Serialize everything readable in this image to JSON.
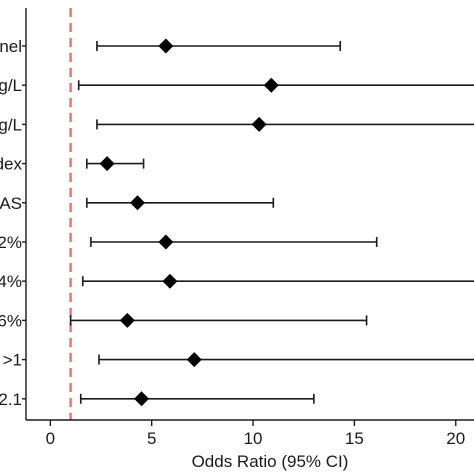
{
  "chart_data": {
    "type": "forest",
    "xlabel": "Odds Ratio (95% CI)",
    "xlim": [
      -1.2,
      20.9
    ],
    "xticks": [
      0,
      5,
      10,
      15,
      20
    ],
    "tick_labels": [
      "0",
      "5",
      "10",
      "15",
      "20"
    ],
    "reference_line": {
      "x": 1,
      "style": "dashed",
      "color": "#e8736b"
    },
    "marker_color": "#000000",
    "categories": [
      "nel",
      "g/L",
      "g/L",
      "dex",
      "AS",
      "2%",
      "4%",
      "6%",
      ">1",
      "2.1"
    ],
    "estimates": [
      {
        "or": 5.7,
        "lower": 2.3,
        "upper": 14.3
      },
      {
        "or": 10.9,
        "lower": 1.4,
        "upper": 21.0
      },
      {
        "or": 10.3,
        "lower": 2.3,
        "upper": 21.0
      },
      {
        "or": 2.8,
        "lower": 1.8,
        "upper": 4.6
      },
      {
        "or": 4.3,
        "lower": 1.8,
        "upper": 11.0
      },
      {
        "or": 5.7,
        "lower": 2.0,
        "upper": 16.1
      },
      {
        "or": 5.9,
        "lower": 1.6,
        "upper": 21.0
      },
      {
        "or": 3.8,
        "lower": 1.0,
        "upper": 15.6
      },
      {
        "or": 7.1,
        "lower": 2.4,
        "upper": 21.0
      },
      {
        "or": 4.5,
        "lower": 1.5,
        "upper": 13.0
      }
    ]
  }
}
